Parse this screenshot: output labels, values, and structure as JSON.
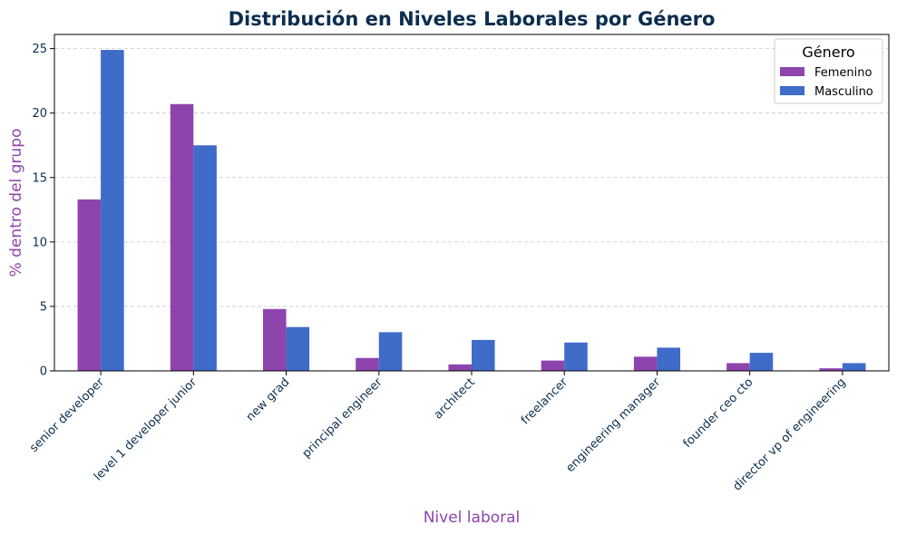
{
  "chart_data": {
    "type": "bar",
    "title": "Distribución en Niveles Laborales por Género",
    "xlabel": "Nivel laboral",
    "ylabel": "% dentro del grupo",
    "ylim": [
      0,
      26.1
    ],
    "yticks": [
      0,
      5,
      10,
      15,
      20,
      25
    ],
    "grid": "y-dashed",
    "legend_placement": "top-right",
    "legend_title": "Género",
    "categories": [
      "senior developer",
      "level 1 developer junior",
      "new grad",
      "principal engineer",
      "architect",
      "freelancer",
      "engineering manager",
      "founder ceo cto",
      "director vp of engineering"
    ],
    "series": [
      {
        "name": "Femenino",
        "color": "#8e44ad",
        "values": [
          13.3,
          20.7,
          4.8,
          1.0,
          0.5,
          0.8,
          1.1,
          0.6,
          0.2
        ]
      },
      {
        "name": "Masculino",
        "color": "#3f6bc9",
        "values": [
          24.9,
          17.5,
          3.4,
          3.0,
          2.4,
          2.2,
          1.8,
          1.4,
          0.6
        ]
      }
    ]
  }
}
